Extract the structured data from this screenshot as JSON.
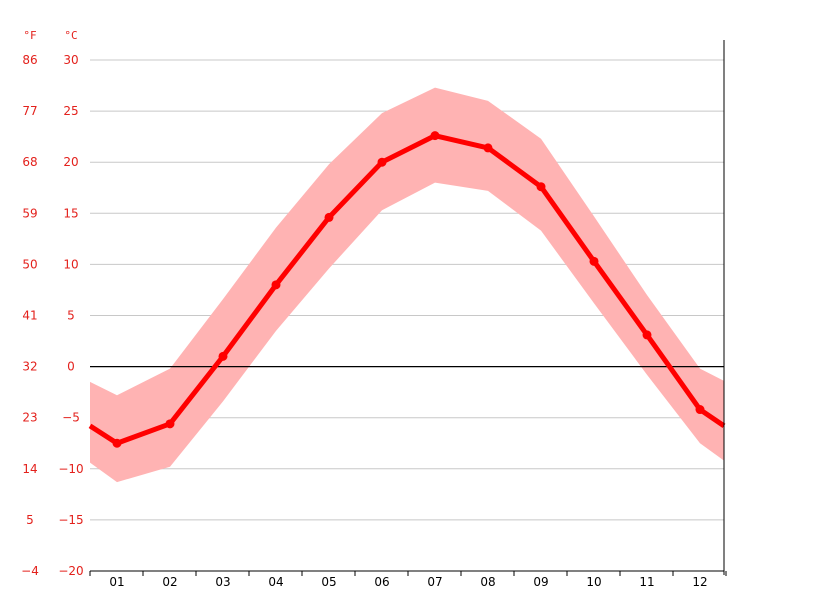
{
  "chart_data": {
    "type": "line",
    "categories": [
      "01",
      "02",
      "03",
      "04",
      "05",
      "06",
      "07",
      "08",
      "09",
      "10",
      "11",
      "12"
    ],
    "series": [
      {
        "role": "mean",
        "values": [
          -7.5,
          -5.6,
          1.0,
          8.0,
          14.6,
          20.0,
          22.6,
          21.4,
          17.6,
          10.3,
          3.1,
          -4.2
        ]
      },
      {
        "role": "band",
        "low": [
          -11.3,
          -9.8,
          -3.4,
          3.5,
          9.6,
          15.3,
          18.0,
          17.2,
          13.3,
          6.2,
          -0.8,
          -7.5
        ],
        "high": [
          -2.8,
          -0.2,
          6.6,
          13.6,
          19.8,
          24.8,
          27.3,
          26.0,
          22.3,
          14.7,
          7.0,
          -0.2
        ]
      }
    ],
    "edges": {
      "left_mean": -5.8,
      "right_mean": -5.8,
      "left_low": -9.4,
      "left_high": -1.5,
      "right_low": -9.2,
      "right_high": -1.4
    },
    "y_left_unit": "°F",
    "y_right_unit": "°C",
    "ylim": [
      -20,
      30
    ],
    "y_ticks_c": [
      "30",
      "25",
      "20",
      "15",
      "10",
      "5",
      "0",
      "−5",
      "−10",
      "−15",
      "−20"
    ],
    "y_ticks_f": [
      "86",
      "77",
      "68",
      "59",
      "50",
      "41",
      "32",
      "23",
      "14",
      "5",
      "−4"
    ],
    "grid": true,
    "colors": {
      "line": "#ff0000",
      "band": "#ffb3b3",
      "grid": "#c8c8c8",
      "zero_line": "#000000",
      "axis_text_red": "#e3211c",
      "axis_text_black": "#000000"
    }
  }
}
